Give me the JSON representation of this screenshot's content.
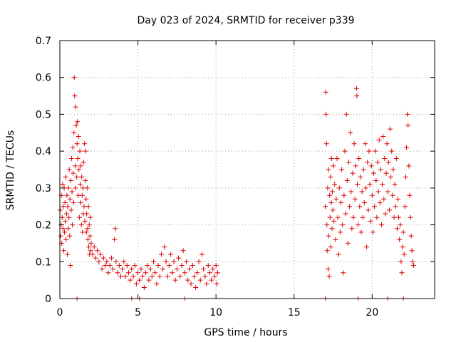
{
  "chart_data": {
    "type": "scatter",
    "title": "Day 023 of 2024, SRMTID for receiver p339",
    "xlabel": "GPS time / hours",
    "ylabel": "SRMTID / TECUs",
    "xlim": [
      0,
      24
    ],
    "ylim": [
      0,
      0.7
    ],
    "xticks": [
      0,
      5,
      10,
      15,
      20
    ],
    "yticks": [
      0,
      0.1,
      0.2,
      0.3,
      0.4,
      0.5,
      0.6,
      0.7
    ],
    "grid": true,
    "marker": "+",
    "color": "#e00000",
    "series": [
      {
        "name": "SRMTID",
        "points": [
          [
            0.02,
            0.24
          ],
          [
            0.05,
            0.17
          ],
          [
            0.08,
            0.2
          ],
          [
            0.1,
            0.28
          ],
          [
            0.12,
            0.15
          ],
          [
            0.15,
            0.22
          ],
          [
            0.18,
            0.31
          ],
          [
            0.2,
            0.19
          ],
          [
            0.22,
            0.25
          ],
          [
            0.25,
            0.13
          ],
          [
            0.28,
            0.3
          ],
          [
            0.3,
            0.18
          ],
          [
            0.33,
            0.26
          ],
          [
            0.35,
            0.21
          ],
          [
            0.38,
            0.33
          ],
          [
            0.4,
            0.16
          ],
          [
            0.43,
            0.23
          ],
          [
            0.45,
            0.28
          ],
          [
            0.48,
            0.12
          ],
          [
            0.5,
            0.25
          ],
          [
            0.53,
            0.19
          ],
          [
            0.55,
            0.3
          ],
          [
            0.58,
            0.22
          ],
          [
            0.6,
            0.35
          ],
          [
            0.63,
            0.17
          ],
          [
            0.65,
            0.27
          ],
          [
            0.68,
            0.09
          ],
          [
            0.7,
            0.32
          ],
          [
            0.73,
            0.24
          ],
          [
            0.75,
            0.38
          ],
          [
            0.78,
            0.29
          ],
          [
            0.8,
            0.2
          ],
          [
            0.83,
            0.41
          ],
          [
            0.85,
            0.34
          ],
          [
            0.88,
            0.26
          ],
          [
            0.9,
            0.45
          ],
          [
            0.92,
            0.6
          ],
          [
            0.95,
            0.55
          ],
          [
            0.98,
            0.36
          ],
          [
            1.0,
            0.3
          ],
          [
            1.02,
            0.52
          ],
          [
            1.05,
            0.47
          ],
          [
            1.08,
            0.33
          ],
          [
            1.1,
            0.42
          ],
          [
            1.12,
            0.48
          ],
          [
            1.15,
            0.38
          ],
          [
            1.18,
            0.28
          ],
          [
            1.2,
            0.44
          ],
          [
            1.22,
            0.35
          ],
          [
            1.25,
            0.22
          ],
          [
            1.28,
            0.4
          ],
          [
            1.3,
            0.31
          ],
          [
            1.33,
            0.26
          ],
          [
            1.35,
            0.36
          ],
          [
            1.38,
            0.2
          ],
          [
            1.4,
            0.33
          ],
          [
            1.43,
            0.28
          ],
          [
            1.45,
            0.18
          ],
          [
            1.48,
            0.3
          ],
          [
            1.5,
            0.23
          ],
          [
            1.52,
            0.37
          ],
          [
            1.55,
            0.25
          ],
          [
            1.58,
            0.42
          ],
          [
            1.6,
            0.21
          ],
          [
            1.63,
            0.32
          ],
          [
            1.65,
            0.4
          ],
          [
            1.68,
            0.27
          ],
          [
            1.7,
            0.18
          ],
          [
            1.72,
            0.23
          ],
          [
            1.75,
            0.3
          ],
          [
            1.78,
            0.19
          ],
          [
            1.8,
            0.16
          ],
          [
            1.83,
            0.25
          ],
          [
            1.85,
            0.14
          ],
          [
            1.88,
            0.2
          ],
          [
            1.9,
            0.12
          ],
          [
            1.93,
            0.17
          ],
          [
            1.95,
            0.22
          ],
          [
            1.98,
            0.13
          ],
          [
            2.0,
            0.15
          ],
          [
            2.1,
            0.12
          ],
          [
            2.2,
            0.14
          ],
          [
            2.3,
            0.11
          ],
          [
            2.4,
            0.13
          ],
          [
            2.5,
            0.1
          ],
          [
            2.6,
            0.12
          ],
          [
            2.7,
            0.08
          ],
          [
            2.8,
            0.11
          ],
          [
            2.9,
            0.09
          ],
          [
            3.0,
            0.1
          ],
          [
            3.1,
            0.07
          ],
          [
            3.2,
            0.09
          ],
          [
            3.3,
            0.11
          ],
          [
            3.4,
            0.08
          ],
          [
            3.5,
            0.16
          ],
          [
            3.55,
            0.19
          ],
          [
            3.6,
            0.1
          ],
          [
            3.7,
            0.07
          ],
          [
            3.8,
            0.09
          ],
          [
            3.9,
            0.06
          ],
          [
            4.0,
            0.08
          ],
          [
            4.1,
            0.1
          ],
          [
            4.2,
            0.06
          ],
          [
            4.3,
            0.09
          ],
          [
            4.4,
            0.07
          ],
          [
            4.5,
            0.05
          ],
          [
            4.6,
            0.08
          ],
          [
            4.7,
            0.06
          ],
          [
            4.8,
            0.09
          ],
          [
            4.9,
            0.04
          ],
          [
            5.0,
            0.07
          ],
          [
            5.1,
            0.05
          ],
          [
            5.2,
            0.08
          ],
          [
            5.3,
            0.06
          ],
          [
            5.4,
            0.03
          ],
          [
            5.5,
            0.07
          ],
          [
            5.6,
            0.09
          ],
          [
            5.7,
            0.05
          ],
          [
            5.8,
            0.08
          ],
          [
            5.9,
            0.06
          ],
          [
            6.0,
            0.1
          ],
          [
            6.1,
            0.07
          ],
          [
            6.2,
            0.04
          ],
          [
            6.3,
            0.09
          ],
          [
            6.4,
            0.06
          ],
          [
            6.5,
            0.12
          ],
          [
            6.6,
            0.08
          ],
          [
            6.7,
            0.14
          ],
          [
            6.8,
            0.1
          ],
          [
            6.9,
            0.06
          ],
          [
            7.0,
            0.09
          ],
          [
            7.1,
            0.12
          ],
          [
            7.2,
            0.07
          ],
          [
            7.3,
            0.1
          ],
          [
            7.4,
            0.05
          ],
          [
            7.5,
            0.08
          ],
          [
            7.6,
            0.11
          ],
          [
            7.7,
            0.06
          ],
          [
            7.8,
            0.09
          ],
          [
            7.9,
            0.13
          ],
          [
            8.0,
            0.07
          ],
          [
            8.1,
            0.1
          ],
          [
            8.2,
            0.05
          ],
          [
            8.3,
            0.08
          ],
          [
            8.4,
            0.04
          ],
          [
            8.5,
            0.09
          ],
          [
            8.6,
            0.06
          ],
          [
            8.7,
            0.03
          ],
          [
            8.8,
            0.07
          ],
          [
            8.9,
            0.1
          ],
          [
            9.0,
            0.05
          ],
          [
            9.1,
            0.12
          ],
          [
            9.2,
            0.08
          ],
          [
            9.3,
            0.06
          ],
          [
            9.4,
            0.04
          ],
          [
            9.5,
            0.09
          ],
          [
            9.6,
            0.07
          ],
          [
            9.7,
            0.05
          ],
          [
            9.8,
            0.08
          ],
          [
            9.9,
            0.06
          ],
          [
            10.0,
            0.09
          ],
          [
            10.05,
            0.04
          ],
          [
            10.1,
            0.07
          ],
          [
            17.0,
            0.25
          ],
          [
            17.03,
            0.56
          ],
          [
            17.05,
            0.5
          ],
          [
            17.08,
            0.42
          ],
          [
            17.1,
            0.2
          ],
          [
            17.12,
            0.13
          ],
          [
            17.15,
            0.3
          ],
          [
            17.18,
            0.08
          ],
          [
            17.2,
            0.35
          ],
          [
            17.22,
            0.17
          ],
          [
            17.25,
            0.06
          ],
          [
            17.28,
            0.28
          ],
          [
            17.3,
            0.22
          ],
          [
            17.33,
            0.33
          ],
          [
            17.35,
            0.14
          ],
          [
            17.38,
            0.26
          ],
          [
            17.4,
            0.38
          ],
          [
            17.43,
            0.19
          ],
          [
            17.45,
            0.29
          ],
          [
            17.48,
            0.24
          ],
          [
            17.5,
            0.36
          ],
          [
            17.55,
            0.21
          ],
          [
            17.6,
            0.31
          ],
          [
            17.65,
            0.16
          ],
          [
            17.7,
            0.27
          ],
          [
            17.75,
            0.38
          ],
          [
            17.8,
            0.22
          ],
          [
            17.85,
            0.12
          ],
          [
            17.9,
            0.3
          ],
          [
            17.95,
            0.18
          ],
          [
            18.0,
            0.26
          ],
          [
            18.05,
            0.35
          ],
          [
            18.1,
            0.2
          ],
          [
            18.15,
            0.07
          ],
          [
            18.2,
            0.28
          ],
          [
            18.25,
            0.4
          ],
          [
            18.3,
            0.23
          ],
          [
            18.35,
            0.5
          ],
          [
            18.4,
            0.32
          ],
          [
            18.45,
            0.15
          ],
          [
            18.5,
            0.37
          ],
          [
            18.55,
            0.25
          ],
          [
            18.6,
            0.45
          ],
          [
            18.65,
            0.29
          ],
          [
            18.7,
            0.19
          ],
          [
            18.75,
            0.34
          ],
          [
            18.8,
            0.22
          ],
          [
            18.85,
            0.42
          ],
          [
            18.9,
            0.27
          ],
          [
            18.95,
            0.36
          ],
          [
            19.0,
            0.57
          ],
          [
            19.02,
            0.55
          ],
          [
            19.05,
            0.31
          ],
          [
            19.1,
            0.2
          ],
          [
            19.15,
            0.38
          ],
          [
            19.2,
            0.25
          ],
          [
            19.25,
            0.33
          ],
          [
            19.3,
            0.18
          ],
          [
            19.35,
            0.29
          ],
          [
            19.4,
            0.22
          ],
          [
            19.45,
            0.35
          ],
          [
            19.5,
            0.26
          ],
          [
            19.55,
            0.42
          ],
          [
            19.6,
            0.3
          ],
          [
            19.65,
            0.14
          ],
          [
            19.7,
            0.37
          ],
          [
            19.75,
            0.24
          ],
          [
            19.8,
            0.4
          ],
          [
            19.85,
            0.31
          ],
          [
            19.9,
            0.21
          ],
          [
            19.95,
            0.36
          ],
          [
            20.0,
            0.28
          ],
          [
            20.05,
            0.18
          ],
          [
            20.1,
            0.34
          ],
          [
            20.15,
            0.25
          ],
          [
            20.2,
            0.4
          ],
          [
            20.25,
            0.32
          ],
          [
            20.3,
            0.22
          ],
          [
            20.35,
            0.37
          ],
          [
            20.4,
            0.29
          ],
          [
            20.45,
            0.43
          ],
          [
            20.5,
            0.26
          ],
          [
            20.55,
            0.35
          ],
          [
            20.6,
            0.2
          ],
          [
            20.65,
            0.31
          ],
          [
            20.7,
            0.44
          ],
          [
            20.75,
            0.27
          ],
          [
            20.8,
            0.38
          ],
          [
            20.85,
            0.23
          ],
          [
            20.9,
            0.34
          ],
          [
            20.95,
            0.42
          ],
          [
            21.0,
            0.29
          ],
          [
            21.05,
            0.37
          ],
          [
            21.1,
            0.24
          ],
          [
            21.15,
            0.46
          ],
          [
            21.2,
            0.33
          ],
          [
            21.25,
            0.4
          ],
          [
            21.3,
            0.28
          ],
          [
            21.35,
            0.35
          ],
          [
            21.4,
            0.22
          ],
          [
            21.45,
            0.31
          ],
          [
            21.5,
            0.25
          ],
          [
            21.55,
            0.38
          ],
          [
            21.6,
            0.19
          ],
          [
            21.65,
            0.27
          ],
          [
            21.7,
            0.22
          ],
          [
            21.75,
            0.16
          ],
          [
            21.8,
            0.2
          ],
          [
            21.85,
            0.1
          ],
          [
            21.9,
            0.07
          ],
          [
            21.95,
            0.14
          ],
          [
            22.0,
            0.18
          ],
          [
            22.05,
            0.12
          ],
          [
            22.1,
            0.25
          ],
          [
            22.15,
            0.33
          ],
          [
            22.2,
            0.41
          ],
          [
            22.25,
            0.5
          ],
          [
            22.3,
            0.47
          ],
          [
            22.35,
            0.36
          ],
          [
            22.4,
            0.28
          ],
          [
            22.45,
            0.22
          ],
          [
            22.5,
            0.17
          ],
          [
            22.55,
            0.13
          ],
          [
            22.6,
            0.1
          ],
          [
            22.65,
            0.09
          ]
        ]
      }
    ],
    "zero_markers_x": [
      1.1,
      4.6,
      5.1,
      8.0,
      17.0,
      19.1,
      21.0,
      22.0
    ]
  }
}
